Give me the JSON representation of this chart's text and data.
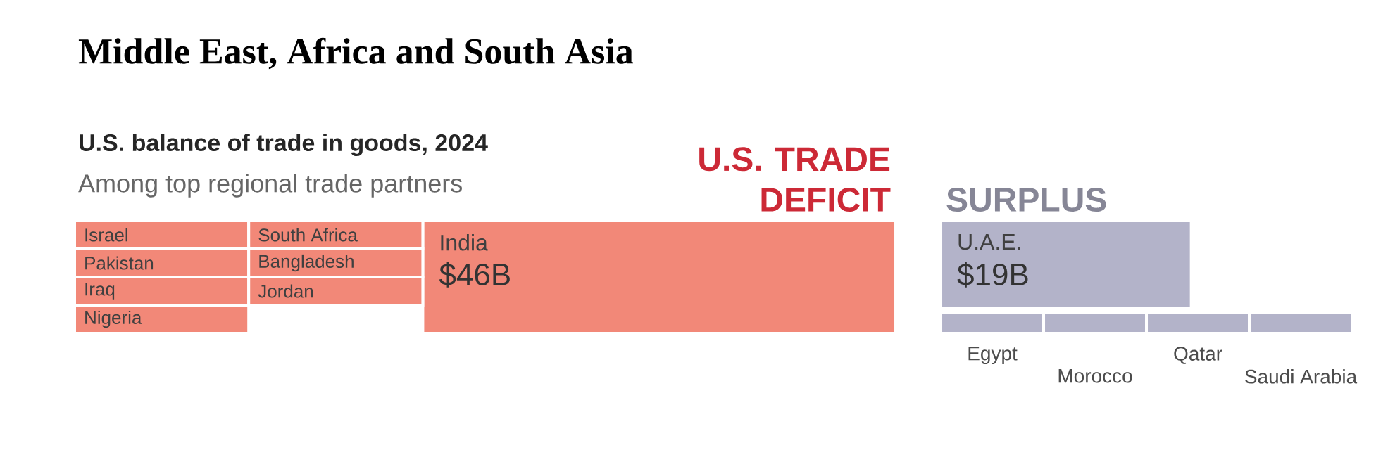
{
  "chart_data": [
    {
      "type": "other",
      "title": "Middle East, Africa and South Asia",
      "subtitle": "U.S. balance of trade in goods, 2024",
      "annotations": [
        "Among top regional trade partners"
      ],
      "categories": [
        "Israel",
        "South Africa",
        "India",
        "Pakistan",
        "Bangladesh",
        "Iraq",
        "Jordan",
        "Nigeria"
      ],
      "series": [
        {
          "name": "U.S. TRADE DEFICIT",
          "color": "#f28878",
          "values": [
            null,
            null,
            46,
            null,
            null,
            null,
            null,
            null
          ],
          "value_labels": [
            null,
            null,
            "$46B",
            null,
            null,
            null,
            null,
            null
          ]
        }
      ]
    },
    {
      "type": "other",
      "categories": [
        "U.A.E.",
        "Egypt",
        "Morocco",
        "Qatar",
        "Saudi Arabia"
      ],
      "series": [
        {
          "name": "SURPLUS",
          "color": "#b3b3c9",
          "values": [
            19,
            null,
            null,
            null,
            null
          ],
          "value_labels": [
            "$19B",
            null,
            null,
            null,
            null
          ]
        }
      ]
    }
  ]
}
